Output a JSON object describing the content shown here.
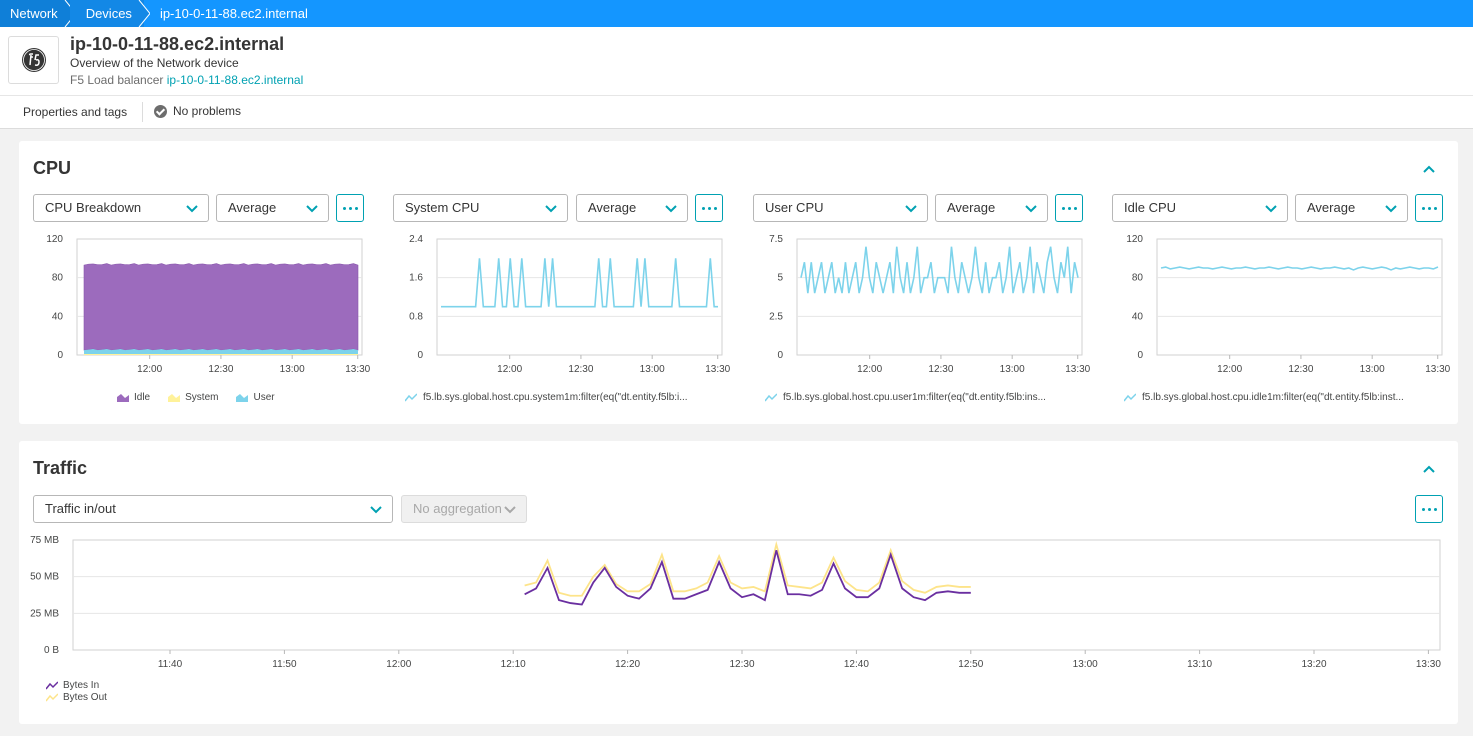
{
  "breadcrumb": [
    "Network",
    "Devices",
    "ip-10-0-11-88.ec2.internal"
  ],
  "header": {
    "title": "ip-10-0-11-88.ec2.internal",
    "subtitle": "Overview of the Network device",
    "type_label": "F5 Load balancer",
    "type_link": "ip-10-0-11-88.ec2.internal",
    "logo_icon": "f5-logo-icon"
  },
  "tabs": {
    "properties": "Properties and tags",
    "status": "No problems"
  },
  "colors": {
    "accent": "#00a1b2",
    "topbar": "#1496ff",
    "idle": "#9c6bbd",
    "system": "#fff29a",
    "user": "#7dd3eb",
    "line": "#7dd3eb",
    "bytes_in": "#6a2fa0",
    "bytes_out": "#fde48a"
  },
  "cpu": {
    "title": "CPU",
    "charts": [
      {
        "metric_select": "CPU Breakdown",
        "agg_select": "Average",
        "legend": [
          "Idle",
          "System",
          "User"
        ]
      },
      {
        "metric_select": "System CPU",
        "agg_select": "Average",
        "legend_metric": "f5.lb.sys.global.host.cpu.system1m:filter(eq(\"dt.entity.f5lb:i..."
      },
      {
        "metric_select": "User CPU",
        "agg_select": "Average",
        "legend_metric": "f5.lb.sys.global.host.cpu.user1m:filter(eq(\"dt.entity.f5lb:ins..."
      },
      {
        "metric_select": "Idle CPU",
        "agg_select": "Average",
        "legend_metric": "f5.lb.sys.global.host.cpu.idle1m:filter(eq(\"dt.entity.f5lb:inst..."
      }
    ]
  },
  "traffic": {
    "title": "Traffic",
    "metric_select": "Traffic in/out",
    "agg_select": "No aggregation",
    "legend": [
      "Bytes In",
      "Bytes Out"
    ]
  },
  "chart_data": [
    {
      "type": "area",
      "name": "CPU Breakdown",
      "y_ticks": [
        "0",
        "40",
        "80",
        "120"
      ],
      "ylim": [
        0,
        120
      ],
      "x_ticks": [
        "12:00",
        "12:30",
        "13:00",
        "13:30"
      ],
      "series": [
        {
          "name": "Idle",
          "approx_value": 88
        },
        {
          "name": "System",
          "approx_value": 1
        },
        {
          "name": "User",
          "approx_value": 5
        }
      ]
    },
    {
      "type": "line",
      "name": "System CPU",
      "y_ticks": [
        "0",
        "0.8",
        "1.6",
        "2.4"
      ],
      "ylim": [
        0,
        2.4
      ],
      "x_ticks": [
        "12:00",
        "12:30",
        "13:00",
        "13:30"
      ],
      "values": [
        1,
        1,
        1,
        1,
        1,
        1,
        1,
        1,
        1,
        1,
        2,
        1,
        1,
        1,
        1,
        2,
        1,
        1,
        2,
        1,
        1,
        2,
        1,
        1,
        1,
        1,
        1,
        2,
        1,
        2,
        1,
        1,
        1,
        1,
        1,
        1,
        1,
        1,
        1,
        1,
        1,
        2,
        1,
        1,
        2,
        1,
        1,
        1,
        1,
        1,
        1,
        2,
        1,
        2,
        1,
        1,
        1,
        1,
        1,
        1,
        1,
        2,
        1,
        1,
        1,
        1,
        1,
        1,
        1,
        1,
        2,
        1,
        1
      ]
    },
    {
      "type": "line",
      "name": "User CPU",
      "y_ticks": [
        "0",
        "2.5",
        "5",
        "7.5"
      ],
      "ylim": [
        0,
        7.5
      ],
      "x_ticks": [
        "12:00",
        "12:30",
        "13:00",
        "13:30"
      ],
      "values": [
        5,
        6,
        4,
        6,
        4,
        5,
        6,
        4,
        5,
        6,
        4,
        5,
        4,
        6,
        4,
        5,
        6,
        4,
        5,
        7,
        5,
        4,
        6,
        5,
        4,
        5,
        6,
        4,
        7,
        5,
        4,
        6,
        4,
        5,
        7,
        4,
        5,
        5,
        6,
        4,
        5,
        5,
        5,
        4,
        7,
        5,
        4,
        6,
        5,
        4,
        5,
        7,
        5,
        4,
        6,
        4,
        5,
        5,
        6,
        4,
        5,
        7,
        4,
        5,
        6,
        4,
        5,
        7,
        4,
        6,
        5,
        4,
        6,
        7,
        5,
        4,
        6,
        5,
        7,
        4,
        6,
        5
      ]
    },
    {
      "type": "line",
      "name": "Idle CPU",
      "y_ticks": [
        "0",
        "40",
        "80",
        "120"
      ],
      "ylim": [
        0,
        120
      ],
      "x_ticks": [
        "12:00",
        "12:30",
        "13:00",
        "13:30"
      ],
      "values": [
        90,
        91,
        89,
        90,
        91,
        90,
        89,
        90,
        91,
        90,
        90,
        89,
        90,
        91,
        90,
        89,
        90,
        90,
        91,
        90,
        89,
        90,
        90,
        91,
        90,
        89,
        90,
        91,
        90,
        90,
        89,
        90,
        91,
        90,
        89,
        90,
        90,
        91,
        90,
        89,
        90,
        88,
        90,
        91,
        90,
        89,
        90,
        91,
        90,
        88,
        90,
        89,
        90,
        91,
        90,
        89,
        90,
        90,
        89,
        91
      ]
    },
    {
      "type": "line",
      "name": "Traffic in/out",
      "y_ticks": [
        "0 B",
        "25 MB",
        "50 MB",
        "75 MB"
      ],
      "ylim": [
        0,
        75
      ],
      "x_ticks": [
        "11:40",
        "11:50",
        "12:00",
        "12:10",
        "12:20",
        "12:30",
        "12:40",
        "12:50",
        "13:00",
        "13:10",
        "13:20",
        "13:30"
      ],
      "x_range_minutes": [
        0,
        80
      ],
      "series": [
        {
          "name": "Bytes In",
          "x_minutes": [
            41,
            42,
            43,
            44,
            45,
            46,
            47,
            48,
            49,
            50,
            51,
            52,
            53,
            54,
            55,
            56,
            57,
            58,
            59,
            60,
            61,
            62,
            63,
            64,
            65,
            66,
            67,
            68,
            69,
            70,
            71,
            72,
            73,
            74,
            75,
            76,
            77,
            78,
            79,
            80
          ],
          "values": [
            38,
            42,
            56,
            34,
            32,
            31,
            46,
            56,
            43,
            37,
            35,
            42,
            60,
            35,
            35,
            38,
            41,
            60,
            42,
            36,
            38,
            34,
            68,
            38,
            38,
            37,
            41,
            59,
            42,
            36,
            36,
            42,
            65,
            42,
            36,
            34,
            39,
            40,
            39,
            39
          ]
        },
        {
          "name": "Bytes Out",
          "x_minutes": [
            41,
            42,
            43,
            44,
            45,
            46,
            47,
            48,
            49,
            50,
            51,
            52,
            53,
            54,
            55,
            56,
            57,
            58,
            59,
            60,
            61,
            62,
            63,
            64,
            65,
            66,
            67,
            68,
            69,
            70,
            71,
            72,
            73,
            74,
            75,
            76,
            77,
            78,
            79,
            80
          ],
          "values": [
            44,
            46,
            61,
            39,
            37,
            37,
            50,
            58,
            45,
            40,
            40,
            45,
            65,
            40,
            40,
            42,
            46,
            64,
            46,
            42,
            43,
            40,
            72,
            44,
            43,
            42,
            46,
            63,
            47,
            41,
            40,
            46,
            68,
            47,
            41,
            39,
            43,
            44,
            43,
            43
          ]
        }
      ]
    }
  ]
}
